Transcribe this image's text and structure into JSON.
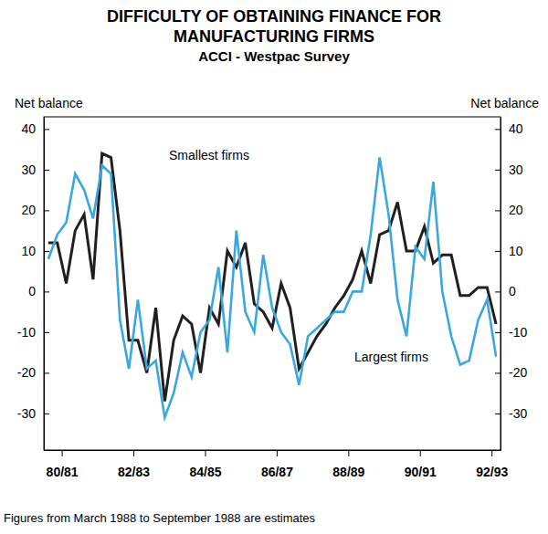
{
  "chart_data": {
    "type": "line",
    "title": "DIFFICULTY OF OBTAINING FINANCE FOR MANUFACTURING FIRMS",
    "subtitle": "ACCI - Westpac Survey",
    "ylabel": "Net balance",
    "y2label": "Net balance",
    "note": "Figures from March 1988 to September 1988 are estimates",
    "x": [
      1980.625,
      1980.875,
      1981.125,
      1981.375,
      1981.625,
      1981.875,
      1982.125,
      1982.375,
      1982.625,
      1982.875,
      1983.125,
      1983.375,
      1983.625,
      1983.875,
      1984.125,
      1984.375,
      1984.625,
      1984.875,
      1985.125,
      1985.375,
      1985.625,
      1985.875,
      1986.125,
      1986.375,
      1986.625,
      1986.875,
      1987.125,
      1987.375,
      1987.625,
      1987.875,
      1988.125,
      1988.375,
      1988.625,
      1988.875,
      1989.125,
      1989.375,
      1989.625,
      1989.875,
      1990.125,
      1990.375,
      1990.625,
      1990.875,
      1991.125,
      1991.375,
      1991.625,
      1991.875,
      1992.125,
      1992.375,
      1992.625,
      1992.875,
      1993.125
    ],
    "xlim": [
      1980.5,
      1993.25
    ],
    "xticks": [
      {
        "value": 1981,
        "label": "80/81"
      },
      {
        "value": 1983,
        "label": "82/83"
      },
      {
        "value": 1985,
        "label": "84/85"
      },
      {
        "value": 1987,
        "label": "86/87"
      },
      {
        "value": 1989,
        "label": "88/89"
      },
      {
        "value": 1991,
        "label": "90/91"
      },
      {
        "value": 1993,
        "label": "92/93"
      }
    ],
    "ylim": [
      -39,
      43
    ],
    "yticks": [
      -30,
      -20,
      -10,
      0,
      10,
      20,
      30,
      40
    ],
    "y2lim": [
      -39,
      43
    ],
    "y2ticks": [
      -30,
      -20,
      -10,
      0,
      10,
      20,
      30,
      40
    ],
    "grid": false,
    "series": [
      {
        "name": "Smallest firms",
        "color": "#231f20",
        "values": [
          12,
          12,
          2,
          15,
          19,
          3,
          34,
          33,
          15,
          -12,
          -12,
          -20,
          -4,
          -27,
          -12,
          -6,
          -8,
          -20,
          -4,
          -8,
          10,
          6,
          12,
          -3,
          -5,
          -9,
          2,
          -4,
          -19,
          -15,
          -11,
          -8,
          -4,
          -1,
          3,
          10,
          2,
          14,
          15,
          22,
          10,
          10,
          16,
          7,
          9,
          9,
          -1,
          -1,
          1,
          1,
          -8
        ]
      },
      {
        "name": "Largest firms",
        "color": "#3aa7e0",
        "values": [
          8,
          14,
          17,
          29,
          25,
          18,
          31,
          29,
          -7,
          -19,
          -2,
          -19,
          -17,
          -31,
          -25,
          -15,
          -21,
          -10,
          -7,
          6,
          -15,
          15,
          -5,
          -10,
          9,
          -4,
          -10,
          -13,
          -23,
          -11,
          -9,
          -7,
          -5,
          -5,
          0,
          0,
          14,
          33,
          19,
          -2,
          -11,
          11,
          8,
          27,
          0,
          -11,
          -18,
          -17,
          -7,
          -2,
          -16
        ]
      }
    ]
  }
}
